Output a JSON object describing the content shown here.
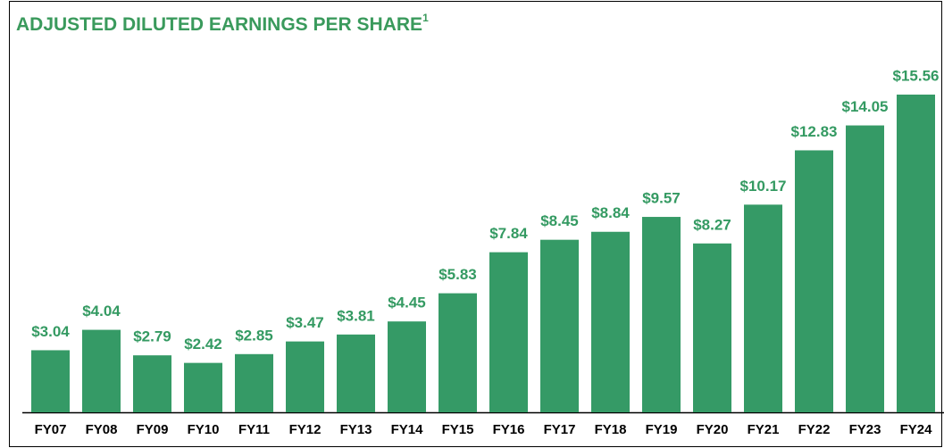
{
  "chart_data": {
    "type": "bar",
    "title": "ADJUSTED DILUTED EARNINGS PER SHARE",
    "title_footnote": "1",
    "categories": [
      "FY07",
      "FY08",
      "FY09",
      "FY10",
      "FY11",
      "FY12",
      "FY13",
      "FY14",
      "FY15",
      "FY16",
      "FY17",
      "FY18",
      "FY19",
      "FY20",
      "FY21",
      "FY22",
      "FY23",
      "FY24"
    ],
    "values": [
      3.04,
      4.04,
      2.79,
      2.42,
      2.85,
      3.47,
      3.81,
      4.45,
      5.83,
      7.84,
      8.45,
      8.84,
      9.57,
      8.27,
      10.17,
      12.83,
      14.05,
      15.56
    ],
    "value_labels": [
      "$3.04",
      "$4.04",
      "$2.79",
      "$2.42",
      "$2.85",
      "$3.47",
      "$3.81",
      "$4.45",
      "$5.83",
      "$7.84",
      "$8.45",
      "$8.84",
      "$9.57",
      "$8.27",
      "$10.17",
      "$12.83",
      "$14.05",
      "$15.56"
    ],
    "color": "#359a66"
  }
}
